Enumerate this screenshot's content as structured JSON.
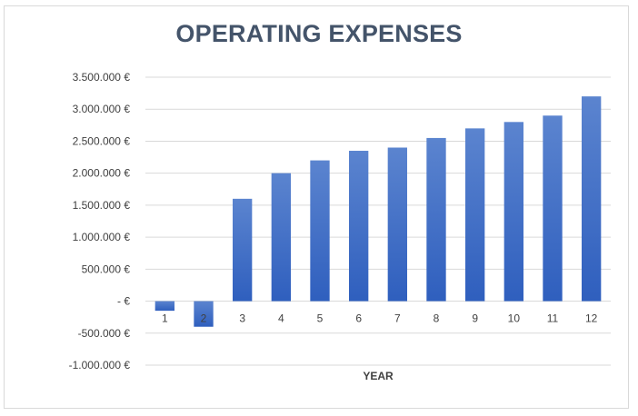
{
  "chart_data": {
    "type": "bar",
    "title": "OPERATING EXPENSES",
    "xlabel": "YEAR",
    "ylabel": "",
    "categories": [
      "1",
      "2",
      "3",
      "4",
      "5",
      "6",
      "7",
      "8",
      "9",
      "10",
      "11",
      "12"
    ],
    "values": [
      -150000,
      -400000,
      1600000,
      2000000,
      2200000,
      2350000,
      2400000,
      2550000,
      2700000,
      2800000,
      2900000,
      3200000
    ],
    "ylim": [
      -1000000,
      3500000
    ],
    "y_ticks": [
      3500000,
      3000000,
      2500000,
      2000000,
      1500000,
      1000000,
      500000,
      0,
      -500000,
      -1000000
    ],
    "y_tick_labels": [
      "3.500.000 €",
      "3.000.000 €",
      "2.500.000 €",
      "2.000.000 €",
      "1.500.000 €",
      "1.000.000 €",
      "500.000 €",
      "-  €",
      "-500.000 €",
      "-1.000.000 €"
    ],
    "grid": true,
    "legend": "none",
    "bar_color_top": "#5b84cf",
    "bar_color_bottom": "#2f5fbe",
    "grid_color": "#d9d9d9",
    "title_color": "#44546a",
    "text_color": "#404040"
  }
}
